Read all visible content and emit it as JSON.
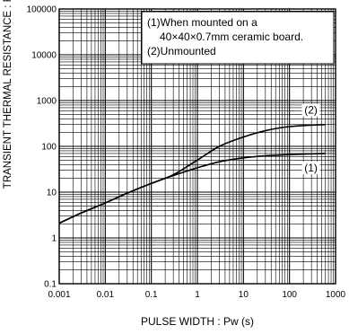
{
  "chart_data": {
    "type": "line",
    "xlabel": "PULSE WIDTH : Pw (s)",
    "ylabel": "TRANSIENT THERMAL RESISTANCE : Rth(°C/W)",
    "x_scale": "log",
    "y_scale": "log",
    "xlim": [
      0.001,
      1000
    ],
    "ylim": [
      0.1,
      100000
    ],
    "x_ticks": [
      "0.001",
      "0.01",
      "0.1",
      "1",
      "10",
      "100",
      "1000"
    ],
    "y_ticks": [
      "100000",
      "10000",
      "1000",
      "100",
      "10",
      "1",
      "0.1"
    ],
    "grid": true,
    "legend": {
      "position": "top-right",
      "lines": [
        "(1)When mounted on a",
        "40×40×0.7mm ceramic board.",
        "(2)Unmounted"
      ]
    },
    "series": [
      {
        "name": "(1)",
        "label_text": "(1)",
        "x": [
          0.001,
          0.003,
          0.01,
          0.03,
          0.1,
          0.3,
          1,
          3,
          10,
          30,
          100,
          600
        ],
        "y": [
          2.1,
          3.5,
          5.8,
          9.5,
          15.5,
          23,
          34,
          46,
          56,
          62,
          66,
          70
        ]
      },
      {
        "name": "(2)",
        "label_text": "(2)",
        "x": [
          0.001,
          0.003,
          0.01,
          0.03,
          0.1,
          0.3,
          1,
          3,
          10,
          30,
          100,
          600
        ],
        "y": [
          2.1,
          3.5,
          5.8,
          9.5,
          15.5,
          24,
          50,
          100,
          160,
          220,
          270,
          300
        ]
      }
    ]
  },
  "colors": {
    "line": "#000000",
    "grid": "#000000",
    "background": "#ffffff"
  }
}
